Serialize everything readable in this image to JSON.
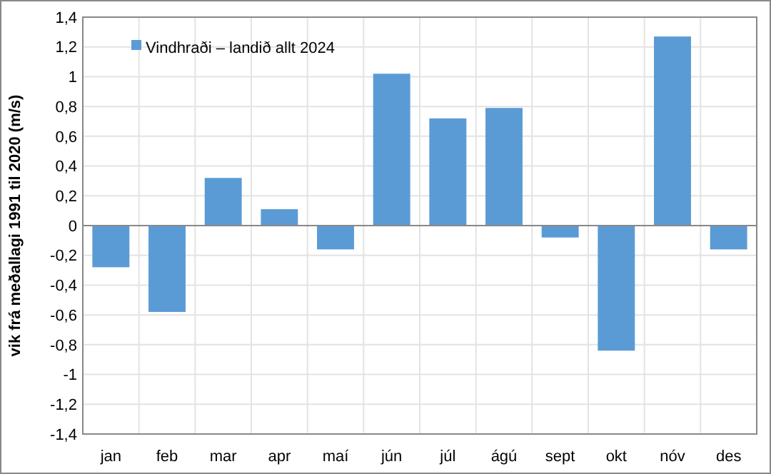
{
  "chart_data": {
    "type": "bar",
    "ylabel": "vik frá meðallagi 1991 til 2020 (m/s)",
    "categories": [
      "jan",
      "feb",
      "mar",
      "apr",
      "maí",
      "jún",
      "júl",
      "ágú",
      "sept",
      "okt",
      "nóv",
      "des"
    ],
    "series": [
      {
        "name": "Vindhraði – landið allt 2024",
        "color": "#5b9bd5",
        "values": [
          -0.28,
          -0.58,
          0.32,
          0.11,
          -0.16,
          1.02,
          0.72,
          0.79,
          -0.08,
          -0.84,
          1.27,
          -0.16
        ]
      }
    ],
    "ylim": [
      -1.4,
      1.4
    ],
    "yticks": [
      {
        "value": -1.4,
        "label": "-1,4"
      },
      {
        "value": -1.2,
        "label": "-1,2"
      },
      {
        "value": -1,
        "label": "-1"
      },
      {
        "value": -0.8,
        "label": "-0,8"
      },
      {
        "value": -0.6,
        "label": "-0,6"
      },
      {
        "value": -0.4,
        "label": "-0,4"
      },
      {
        "value": -0.2,
        "label": "-0,2"
      },
      {
        "value": 0,
        "label": "0"
      },
      {
        "value": 0.2,
        "label": "0,2"
      },
      {
        "value": 0.4,
        "label": "0,4"
      },
      {
        "value": 0.6,
        "label": "0,6"
      },
      {
        "value": 0.8,
        "label": "0,8"
      },
      {
        "value": 1,
        "label": "1"
      },
      {
        "value": 1.2,
        "label": "1,2"
      },
      {
        "value": 1.4,
        "label": "1,4"
      }
    ],
    "grid": true,
    "legend": "top left"
  }
}
